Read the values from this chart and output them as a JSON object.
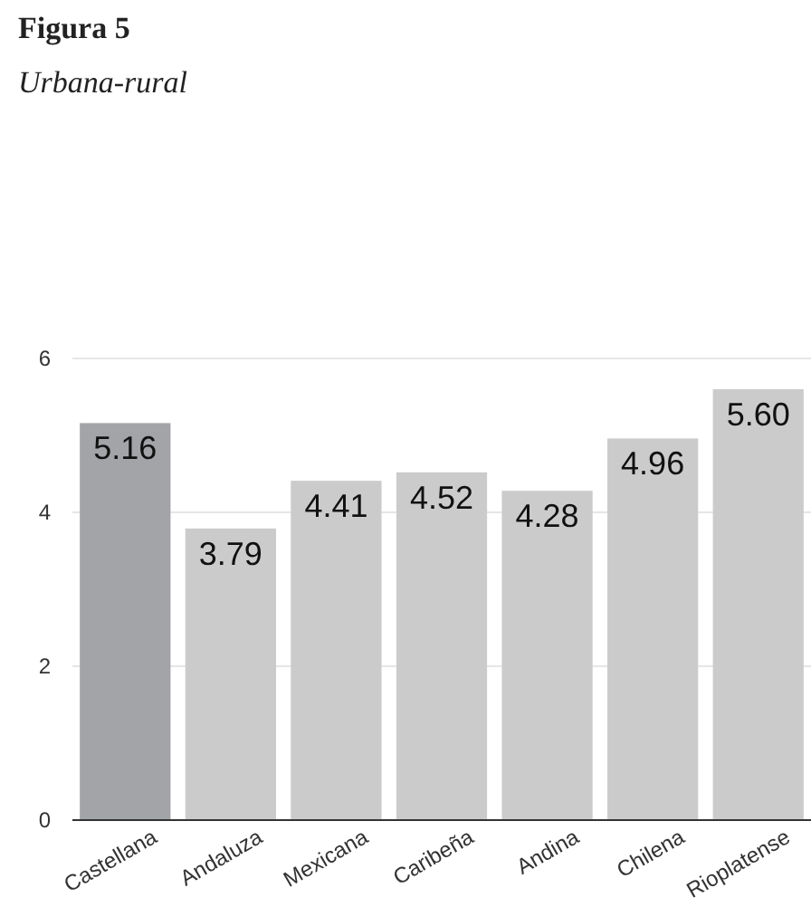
{
  "chart_data": {
    "type": "bar",
    "title": "Figura 5",
    "subtitle": "Urbana-rural",
    "categories": [
      "Castellana",
      "Andaluza",
      "Mexicana",
      "Caribeña",
      "Andina",
      "Chilena",
      "Rioplatense"
    ],
    "values": [
      5.16,
      3.79,
      4.41,
      4.52,
      4.28,
      4.96,
      5.6
    ],
    "colors": [
      "#a2a4a8",
      "#cbcbcb",
      "#cbcbcb",
      "#cbcbcb",
      "#cbcbcb",
      "#cbcbcb",
      "#cbcbcb"
    ],
    "value_labels": [
      "5.16",
      "3.79",
      "4.41",
      "4.52",
      "4.28",
      "4.96",
      "5.60"
    ],
    "ylim": [
      0,
      6
    ],
    "yticks": [
      0,
      2,
      4,
      6
    ],
    "grid": "y"
  }
}
